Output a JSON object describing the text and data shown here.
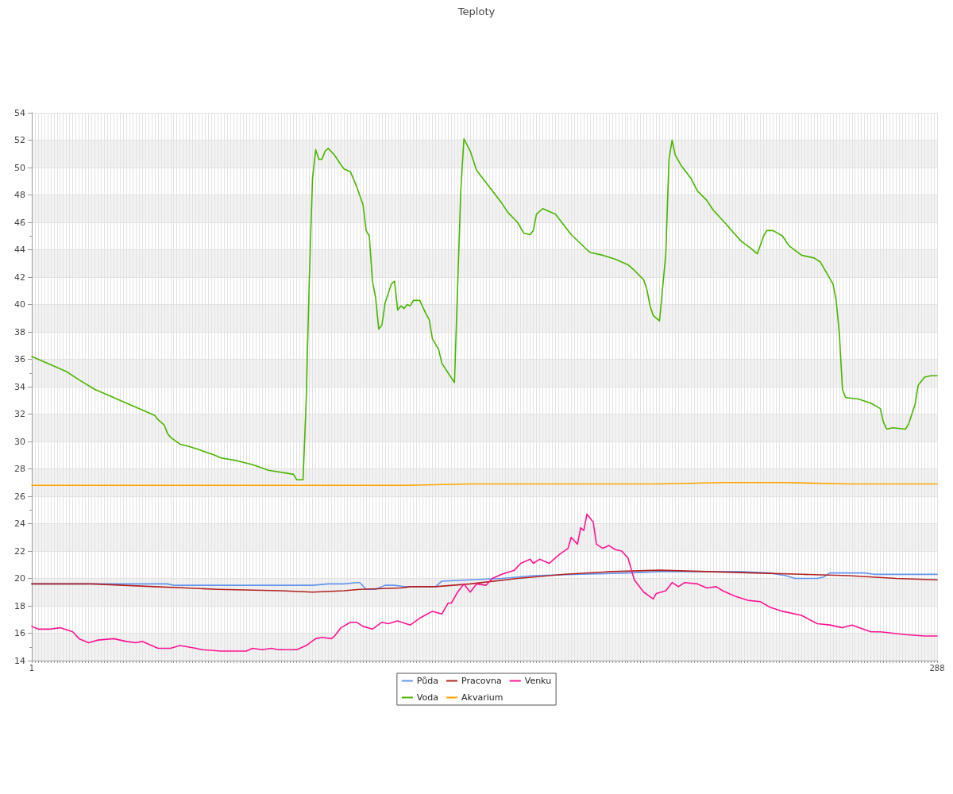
{
  "chart_data": {
    "type": "line",
    "title": "Teploty",
    "xlim": [
      1,
      288
    ],
    "xticks": [
      1,
      {
        "value": 2,
        "label": null
      },
      {
        "value": 3,
        "label": null
      },
      {
        "value": 4,
        "label": null
      },
      {
        "value": 5,
        "label": null
      },
      {
        "value": 6,
        "label": null
      },
      {
        "value": 7,
        "label": null
      },
      {
        "value": 8,
        "label": null
      },
      {
        "value": 9,
        "label": null
      },
      {
        "value": 10,
        "label": null
      },
      {
        "value": 11,
        "label": null
      },
      {
        "value": 12,
        "label": null
      },
      {
        "value": 13,
        "label": null
      },
      {
        "value": 14,
        "label": null
      },
      {
        "value": 15,
        "label": null
      },
      {
        "value": 16,
        "label": null
      },
      {
        "value": 17,
        "label": null
      },
      {
        "value": 18,
        "label": null
      },
      {
        "value": 19,
        "label": null
      },
      {
        "value": 20,
        "label": null
      },
      {
        "value": 21,
        "label": null
      },
      {
        "value": 22,
        "label": null
      },
      {
        "value": 23,
        "label": null
      },
      {
        "value": 24,
        "label": null
      },
      {
        "value": 25,
        "label": null
      },
      {
        "value": 26,
        "label": null
      },
      {
        "value": 27,
        "label": null
      },
      {
        "value": 28,
        "label": null
      },
      {
        "value": 29,
        "label": null
      },
      {
        "value": 30,
        "label": null
      },
      {
        "value": 31,
        "label": null
      },
      {
        "value": 32,
        "label": null
      },
      {
        "value": 33,
        "label": null
      },
      {
        "value": 34,
        "label": null
      },
      {
        "value": 35,
        "label": null
      },
      {
        "value": 36,
        "label": null
      },
      {
        "value": 37,
        "label": null
      },
      {
        "value": 38,
        "label": null
      },
      {
        "value": 39,
        "label": null
      },
      {
        "value": 40,
        "label": null
      },
      {
        "value": 41,
        "label": null
      },
      {
        "value": 42,
        "label": null
      },
      {
        "value": 43,
        "label": null
      },
      {
        "value": 44,
        "label": null
      },
      {
        "value": 45,
        "label": null
      },
      {
        "value": 46,
        "label": null
      },
      {
        "value": 47,
        "label": null
      },
      {
        "value": 48,
        "label": null
      },
      {
        "value": 49,
        "label": null
      },
      {
        "value": 50,
        "label": null
      },
      {
        "value": 51,
        "label": null
      },
      {
        "value": 52,
        "label": null
      },
      {
        "value": 53,
        "label": null
      },
      {
        "value": 54,
        "label": null
      },
      {
        "value": 55,
        "label": null
      },
      {
        "value": 56,
        "label": null
      },
      {
        "value": 57,
        "label": null
      },
      {
        "value": 58,
        "label": null
      },
      {
        "value": 59,
        "label": null
      },
      {
        "value": 60,
        "label": null
      },
      {
        "value": 61,
        "label": null
      },
      {
        "value": 62,
        "label": null
      },
      {
        "value": 63,
        "label": null
      },
      {
        "value": 64,
        "label": null
      },
      {
        "value": 65,
        "label": null
      },
      {
        "value": 66,
        "label": null
      },
      {
        "value": 67,
        "label": null
      },
      {
        "value": 68,
        "label": null
      },
      {
        "value": 69,
        "label": null
      },
      {
        "value": 70,
        "label": null
      },
      {
        "value": 71,
        "label": null
      },
      {
        "value": 72,
        "label": null
      },
      {
        "value": 73,
        "label": null
      },
      {
        "value": 74,
        "label": null
      },
      {
        "value": 75,
        "label": null
      },
      {
        "value": 76,
        "label": null
      },
      {
        "value": 77,
        "label": null
      },
      {
        "value": 78,
        "label": null
      },
      {
        "value": 79,
        "label": null
      },
      {
        "value": 80,
        "label": null
      },
      {
        "value": 81,
        "label": null
      },
      {
        "value": 82,
        "label": null
      },
      {
        "value": 83,
        "label": null
      },
      {
        "value": 84,
        "label": null
      },
      {
        "value": 85,
        "label": null
      },
      {
        "value": 86,
        "label": null
      },
      {
        "value": 87,
        "label": null
      },
      {
        "value": 88,
        "label": null
      },
      {
        "value": 89,
        "label": null
      },
      {
        "value": 90,
        "label": null
      },
      {
        "value": 91,
        "label": null
      },
      {
        "value": 92,
        "label": null
      },
      {
        "value": 93,
        "label": null
      },
      {
        "value": 94,
        "label": null
      },
      {
        "value": 95,
        "label": null
      },
      {
        "value": 96,
        "label": null
      },
      {
        "value": 97,
        "label": null
      },
      {
        "value": 98,
        "label": null
      },
      {
        "value": 99,
        "label": null
      },
      {
        "value": 100,
        "label": null
      },
      {
        "value": 101,
        "label": null
      },
      {
        "value": 102,
        "label": null
      },
      {
        "value": 103,
        "label": null
      },
      {
        "value": 104,
        "label": null
      },
      {
        "value": 105,
        "label": null
      },
      {
        "value": 106,
        "label": null
      },
      {
        "value": 107,
        "label": null
      },
      {
        "value": 108,
        "label": null
      },
      {
        "value": 109,
        "label": null
      },
      {
        "value": 110,
        "label": null
      },
      {
        "value": 111,
        "label": null
      },
      {
        "value": 112,
        "label": null
      },
      {
        "value": 113,
        "label": null
      },
      {
        "value": 114,
        "label": null
      },
      {
        "value": 115,
        "label": null
      },
      {
        "value": 116,
        "label": null
      },
      {
        "value": 117,
        "label": null
      },
      {
        "value": 118,
        "label": null
      },
      {
        "value": 119,
        "label": null
      },
      {
        "value": 120,
        "label": null
      },
      {
        "value": 121,
        "label": null
      },
      {
        "value": 122,
        "label": null
      },
      {
        "value": 123,
        "label": null
      },
      {
        "value": 124,
        "label": null
      },
      {
        "value": 125,
        "label": null
      },
      {
        "value": 126,
        "label": null
      },
      {
        "value": 127,
        "label": null
      },
      {
        "value": 128,
        "label": null
      },
      {
        "value": 129,
        "label": null
      },
      {
        "value": 130,
        "label": null
      },
      {
        "value": 131,
        "label": null
      },
      {
        "value": 132,
        "label": null
      },
      {
        "value": 133,
        "label": null
      },
      {
        "value": 134,
        "label": null
      },
      {
        "value": 135,
        "label": null
      },
      {
        "value": 136,
        "label": null
      },
      {
        "value": 137,
        "label": null
      },
      {
        "value": 138,
        "label": null
      },
      {
        "value": 139,
        "label": null
      },
      {
        "value": 140,
        "label": null
      },
      {
        "value": 141,
        "label": null
      },
      {
        "value": 142,
        "label": null
      },
      {
        "value": 143,
        "label": null
      },
      {
        "value": 144,
        "label": null
      },
      {
        "value": 145,
        "label": null
      },
      {
        "value": 146,
        "label": null
      },
      {
        "value": 147,
        "label": null
      },
      {
        "value": 148,
        "label": null
      },
      {
        "value": 149,
        "label": null
      },
      {
        "value": 150,
        "label": null
      },
      {
        "value": 151,
        "label": null
      },
      {
        "value": 152,
        "label": null
      },
      {
        "value": 153,
        "label": null
      },
      {
        "value": 154,
        "label": null
      },
      {
        "value": 155,
        "label": null
      },
      {
        "value": 156,
        "label": null
      },
      {
        "value": 157,
        "label": null
      },
      {
        "value": 158,
        "label": null
      },
      {
        "value": 159,
        "label": null
      },
      {
        "value": 160,
        "label": null
      },
      {
        "value": 161,
        "label": null
      },
      {
        "value": 162,
        "label": null
      },
      {
        "value": 163,
        "label": null
      },
      {
        "value": 164,
        "label": null
      },
      {
        "value": 165,
        "label": null
      },
      {
        "value": 166,
        "label": null
      },
      {
        "value": 167,
        "label": null
      },
      {
        "value": 168,
        "label": null
      },
      {
        "value": 169,
        "label": null
      },
      {
        "value": 170,
        "label": null
      },
      {
        "value": 171,
        "label": null
      },
      {
        "value": 172,
        "label": null
      },
      {
        "value": 173,
        "label": null
      },
      {
        "value": 174,
        "label": null
      },
      {
        "value": 175,
        "label": null
      },
      {
        "value": 176,
        "label": null
      },
      {
        "value": 177,
        "label": null
      },
      {
        "value": 178,
        "label": null
      },
      {
        "value": 179,
        "label": null
      },
      {
        "value": 180,
        "label": null
      },
      {
        "value": 181,
        "label": null
      },
      {
        "value": 182,
        "label": null
      },
      {
        "value": 183,
        "label": null
      },
      {
        "value": 184,
        "label": null
      },
      {
        "value": 185,
        "label": null
      },
      {
        "value": 186,
        "label": null
      },
      {
        "value": 187,
        "label": null
      },
      {
        "value": 188,
        "label": null
      },
      {
        "value": 189,
        "label": null
      },
      {
        "value": 190,
        "label": null
      },
      {
        "value": 191,
        "label": null
      },
      {
        "value": 192,
        "label": null
      },
      {
        "value": 193,
        "label": null
      },
      {
        "value": 194,
        "label": null
      },
      {
        "value": 195,
        "label": null
      },
      {
        "value": 196,
        "label": null
      },
      {
        "value": 197,
        "label": null
      },
      {
        "value": 198,
        "label": null
      },
      {
        "value": 199,
        "label": null
      },
      {
        "value": 200,
        "label": null
      },
      {
        "value": 201,
        "label": null
      },
      {
        "value": 202,
        "label": null
      },
      {
        "value": 203,
        "label": null
      },
      {
        "value": 204,
        "label": null
      },
      {
        "value": 205,
        "label": null
      },
      {
        "value": 206,
        "label": null
      },
      {
        "value": 207,
        "label": null
      },
      {
        "value": 208,
        "label": null
      },
      {
        "value": 209,
        "label": null
      },
      {
        "value": 210,
        "label": null
      },
      {
        "value": 211,
        "label": null
      },
      {
        "value": 212,
        "label": null
      },
      {
        "value": 213,
        "label": null
      },
      {
        "value": 214,
        "label": null
      },
      {
        "value": 215,
        "label": null
      },
      {
        "value": 216,
        "label": null
      },
      {
        "value": 217,
        "label": null
      },
      {
        "value": 218,
        "label": null
      },
      {
        "value": 219,
        "label": null
      },
      {
        "value": 220,
        "label": null
      },
      {
        "value": 221,
        "label": null
      },
      {
        "value": 222,
        "label": null
      },
      {
        "value": 223,
        "label": null
      },
      {
        "value": 224,
        "label": null
      },
      {
        "value": 225,
        "label": null
      },
      {
        "value": 226,
        "label": null
      },
      {
        "value": 227,
        "label": null
      },
      {
        "value": 228,
        "label": null
      },
      {
        "value": 229,
        "label": null
      },
      {
        "value": 230,
        "label": null
      },
      {
        "value": 231,
        "label": null
      },
      {
        "value": 232,
        "label": null
      },
      {
        "value": 233,
        "label": null
      },
      {
        "value": 234,
        "label": null
      },
      {
        "value": 235,
        "label": null
      },
      {
        "value": 236,
        "label": null
      },
      {
        "value": 237,
        "label": null
      },
      {
        "value": 238,
        "label": null
      },
      {
        "value": 239,
        "label": null
      },
      {
        "value": 240,
        "label": null
      },
      {
        "value": 241,
        "label": null
      },
      {
        "value": 242,
        "label": null
      },
      {
        "value": 243,
        "label": null
      },
      {
        "value": 244,
        "label": null
      },
      {
        "value": 245,
        "label": null
      },
      {
        "value": 246,
        "label": null
      },
      {
        "value": 247,
        "label": null
      },
      {
        "value": 248,
        "label": null
      },
      {
        "value": 249,
        "label": null
      },
      {
        "value": 250,
        "label": null
      },
      {
        "value": 251,
        "label": null
      },
      {
        "value": 252,
        "label": null
      },
      {
        "value": 253,
        "label": null
      },
      {
        "value": 254,
        "label": null
      },
      {
        "value": 255,
        "label": null
      },
      {
        "value": 256,
        "label": null
      },
      {
        "value": 257,
        "label": null
      },
      {
        "value": 258,
        "label": null
      },
      {
        "value": 259,
        "label": null
      },
      {
        "value": 260,
        "label": null
      },
      {
        "value": 261,
        "label": null
      },
      {
        "value": 262,
        "label": null
      },
      {
        "value": 263,
        "label": null
      },
      {
        "value": 264,
        "label": null
      },
      {
        "value": 265,
        "label": null
      },
      {
        "value": 266,
        "label": null
      },
      {
        "value": 267,
        "label": null
      },
      {
        "value": 268,
        "label": null
      },
      {
        "value": 269,
        "label": null
      },
      {
        "value": 270,
        "label": null
      },
      {
        "value": 271,
        "label": null
      },
      {
        "value": 272,
        "label": null
      },
      {
        "value": 273,
        "label": null
      },
      {
        "value": 274,
        "label": null
      },
      {
        "value": 275,
        "label": null
      },
      {
        "value": 276,
        "label": null
      },
      {
        "value": 277,
        "label": null
      },
      {
        "value": 278,
        "label": null
      },
      {
        "value": 279,
        "label": null
      },
      {
        "value": 280,
        "label": null
      },
      {
        "value": 281,
        "label": null
      },
      {
        "value": 282,
        "label": null
      },
      {
        "value": 283,
        "label": null
      },
      {
        "value": 284,
        "label": null
      },
      {
        "value": 285,
        "label": null
      },
      {
        "value": 286,
        "label": null
      },
      {
        "value": 287,
        "label": null
      },
      288
    ],
    "ylim": [
      14,
      54
    ],
    "yticks": [
      14,
      16,
      18,
      20,
      22,
      24,
      26,
      28,
      30,
      32,
      34,
      36,
      38,
      40,
      42,
      44,
      46,
      48,
      50,
      52,
      54
    ],
    "grid": true,
    "legend": "bottom",
    "marker": "none",
    "line_style": "solid",
    "series": [
      {
        "name": "Půda",
        "color": "#6495ed",
        "x": [
          1,
          44,
          46,
          90,
          95,
          100,
          104,
          105,
          107,
          110,
          113,
          116,
          119,
          129,
          131,
          140,
          150,
          160,
          175,
          190,
          200,
          225,
          235,
          240,
          243,
          250,
          252,
          254,
          265,
          268,
          288
        ],
        "values": [
          19.6,
          19.6,
          19.5,
          19.5,
          19.6,
          19.6,
          19.7,
          19.7,
          19.2,
          19.2,
          19.5,
          19.5,
          19.4,
          19.4,
          19.8,
          19.9,
          20.0,
          20.2,
          20.3,
          20.4,
          20.5,
          20.5,
          20.4,
          20.2,
          20.0,
          20.0,
          20.1,
          20.4,
          20.4,
          20.3,
          20.3
        ]
      },
      {
        "name": "Pracovna",
        "color": "#b22222",
        "x": [
          1,
          20,
          30,
          40,
          50,
          60,
          80,
          90,
          100,
          105,
          118,
          121,
          129,
          140,
          155,
          170,
          185,
          200,
          215,
          230,
          245,
          260,
          275,
          288
        ],
        "values": [
          19.6,
          19.6,
          19.5,
          19.4,
          19.3,
          19.2,
          19.1,
          19.0,
          19.1,
          19.2,
          19.3,
          19.4,
          19.4,
          19.6,
          20.0,
          20.3,
          20.5,
          20.6,
          20.5,
          20.4,
          20.3,
          20.2,
          20.0,
          19.9
        ]
      },
      {
        "name": "Venku",
        "color": "#ff1493",
        "x": [
          1,
          3,
          7,
          10,
          14,
          16,
          19,
          22,
          27,
          31,
          34,
          36,
          41,
          45,
          48,
          53,
          55,
          61,
          69,
          71,
          74,
          77,
          79,
          85,
          88,
          91,
          93,
          96,
          97,
          99,
          102,
          104,
          106,
          109,
          112,
          114,
          117,
          121,
          124,
          128,
          131,
          133,
          134,
          136,
          138,
          140,
          142,
          145,
          147,
          150,
          154,
          156,
          159,
          160,
          162,
          165,
          168,
          171,
          172,
          174,
          175,
          176,
          177,
          179,
          180,
          182,
          184,
          186,
          188,
          190,
          192,
          195,
          198,
          199,
          202,
          204,
          206,
          208,
          212,
          215,
          218,
          220,
          224,
          228,
          232,
          235,
          239,
          245,
          250,
          254,
          258,
          261,
          267,
          270,
          278,
          284,
          288
        ],
        "values": [
          16.5,
          16.3,
          16.3,
          16.4,
          16.1,
          15.6,
          15.3,
          15.5,
          15.6,
          15.4,
          15.3,
          15.4,
          14.9,
          14.9,
          15.1,
          14.9,
          14.8,
          14.7,
          14.7,
          14.9,
          14.8,
          14.9,
          14.8,
          14.8,
          15.1,
          15.6,
          15.7,
          15.6,
          15.8,
          16.4,
          16.8,
          16.8,
          16.5,
          16.3,
          16.8,
          16.7,
          16.9,
          16.6,
          17.1,
          17.6,
          17.4,
          18.2,
          18.2,
          19.0,
          19.6,
          19.0,
          19.6,
          19.5,
          20.0,
          20.3,
          20.6,
          21.1,
          21.4,
          21.1,
          21.4,
          21.1,
          21.7,
          22.2,
          23.0,
          22.5,
          23.7,
          23.5,
          24.7,
          24.1,
          22.5,
          22.2,
          22.4,
          22.1,
          22.0,
          21.5,
          19.9,
          19.0,
          18.5,
          18.9,
          19.1,
          19.7,
          19.4,
          19.7,
          19.6,
          19.3,
          19.4,
          19.1,
          18.7,
          18.4,
          18.3,
          17.9,
          17.6,
          17.3,
          16.7,
          16.6,
          16.4,
          16.6,
          16.1,
          16.1,
          15.9,
          15.8,
          15.8
        ]
      },
      {
        "name": "Voda",
        "color": "#4bb400",
        "x": [
          1,
          10,
          12,
          16,
          21,
          26,
          31,
          36,
          40,
          41,
          43,
          44,
          45,
          48,
          50,
          54,
          59,
          61,
          66,
          71,
          76,
          84,
          85,
          87,
          88,
          89,
          90,
          91,
          92,
          93,
          94,
          95,
          97,
          99,
          100,
          102,
          104,
          106,
          107,
          108,
          109,
          110,
          111,
          112,
          113,
          115,
          116,
          117,
          118,
          119,
          120,
          121,
          122,
          124,
          126,
          127,
          128,
          130,
          131,
          133,
          135,
          137,
          138,
          140,
          142,
          147,
          150,
          152,
          155,
          157,
          159,
          160,
          161,
          163,
          165,
          167,
          169,
          172,
          177,
          178,
          182,
          186,
          190,
          192,
          195,
          196,
          197,
          198,
          200,
          202,
          203,
          204,
          205,
          207,
          210,
          212,
          215,
          217,
          221,
          224,
          226,
          229,
          231,
          233,
          234,
          236,
          239,
          241,
          245,
          249,
          251,
          253,
          255,
          256,
          257,
          258,
          259,
          263,
          267,
          270,
          271,
          272,
          274,
          278,
          279,
          281,
          282,
          284,
          286,
          288
        ],
        "values": [
          36.2,
          35.3,
          35.1,
          34.5,
          33.8,
          33.3,
          32.8,
          32.3,
          31.9,
          31.6,
          31.2,
          30.6,
          30.3,
          29.8,
          29.7,
          29.4,
          29.0,
          28.8,
          28.6,
          28.3,
          27.9,
          27.6,
          27.2,
          27.2,
          33.0,
          42.0,
          49.2,
          51.3,
          50.6,
          50.6,
          51.2,
          51.4,
          50.9,
          50.2,
          49.9,
          49.7,
          48.6,
          47.3,
          45.4,
          45.0,
          41.7,
          40.5,
          38.2,
          38.5,
          40.1,
          41.5,
          41.7,
          39.6,
          39.9,
          39.7,
          40.0,
          39.9,
          40.3,
          40.3,
          39.3,
          38.9,
          37.5,
          36.7,
          35.7,
          35.0,
          34.3,
          48.3,
          52.1,
          51.2,
          49.8,
          48.3,
          47.4,
          46.7,
          46.0,
          45.2,
          45.1,
          45.4,
          46.6,
          47.0,
          46.8,
          46.6,
          46.0,
          45.1,
          44.0,
          43.8,
          43.6,
          43.3,
          42.9,
          42.5,
          41.8,
          41.1,
          39.9,
          39.2,
          38.8,
          43.7,
          50.6,
          52.0,
          50.9,
          50.1,
          49.2,
          48.3,
          47.6,
          46.9,
          45.9,
          45.1,
          44.6,
          44.1,
          43.7,
          45.0,
          45.4,
          45.4,
          45.0,
          44.3,
          43.6,
          43.4,
          43.1,
          42.3,
          41.5,
          40.3,
          37.9,
          33.8,
          33.2,
          33.1,
          32.8,
          32.4,
          31.4,
          30.9,
          31.0,
          30.9,
          31.3,
          32.7,
          34.1,
          34.7,
          34.8,
          34.8
        ]
      },
      {
        "name": "Akvarium",
        "color": "#ffa500",
        "x": [
          1,
          20,
          40,
          60,
          80,
          100,
          120,
          140,
          160,
          180,
          200,
          220,
          240,
          260,
          280,
          288
        ],
        "values": [
          26.8,
          26.8,
          26.8,
          26.8,
          26.8,
          26.8,
          26.8,
          26.9,
          26.9,
          26.9,
          26.9,
          27.0,
          27.0,
          26.9,
          26.9,
          26.9
        ]
      }
    ]
  }
}
